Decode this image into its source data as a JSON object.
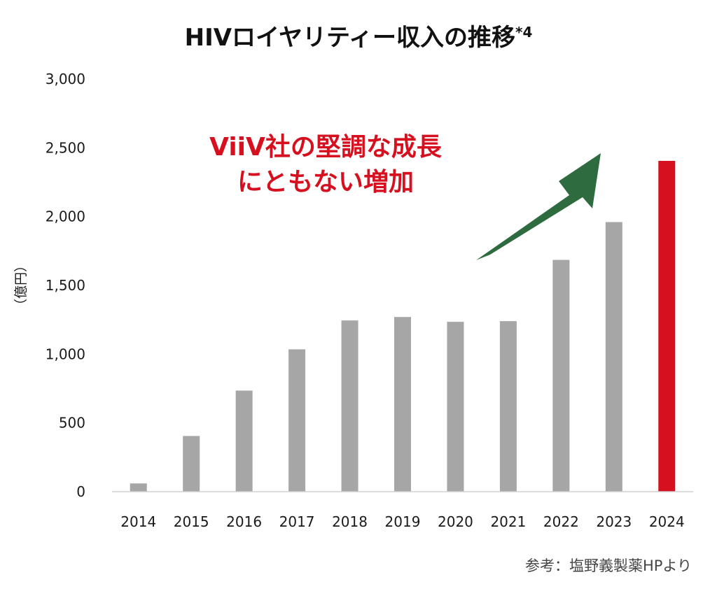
{
  "chart_data": {
    "type": "bar",
    "title": "HIVロイヤリティー収入の推移",
    "title_note": "*4",
    "ylabel": "（億円）",
    "ylim": [
      0,
      3000
    ],
    "yticks": [
      0,
      500,
      1000,
      1500,
      2000,
      2500,
      3000
    ],
    "ytick_labels": [
      "0",
      "500",
      "1,000",
      "1,500",
      "2,000",
      "2,500",
      "3,000"
    ],
    "categories": [
      "2014",
      "2015",
      "2016",
      "2017",
      "2018",
      "2019",
      "2020",
      "2021",
      "2022",
      "2023",
      "2024"
    ],
    "values": [
      60,
      405,
      735,
      1035,
      1245,
      1270,
      1235,
      1240,
      1685,
      1960,
      2405
    ],
    "grid": false,
    "colors": {
      "bar": "#a6a6a6",
      "highlight_bar": "#d7101f",
      "arrow": "#2e6b3e",
      "annotation": "#d7101f"
    },
    "highlight_index": 10,
    "annotation_lines": [
      "ViiV社の堅調な成長",
      "にともない増加"
    ],
    "annotation_icon": "upward-trend-arrow-icon",
    "source": "参考：塩野義製薬HPより"
  }
}
